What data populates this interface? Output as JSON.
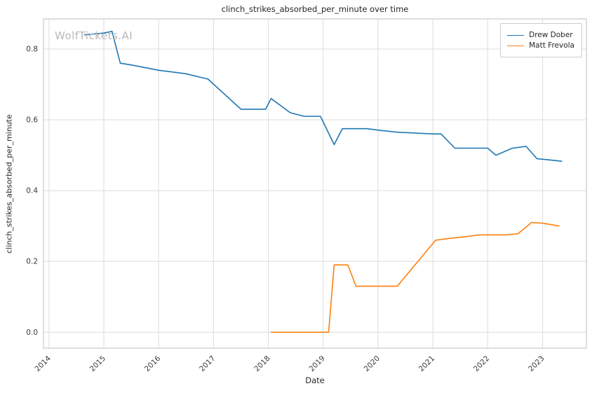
{
  "chart_data": {
    "type": "line",
    "title": "clinch_strikes_absorbed_per_minute over time",
    "xlabel": "Date",
    "ylabel": "clinch_strikes_absorbed_per_minute",
    "watermark": "WolfTickets.AI",
    "grid": true,
    "legend_position": "upper right",
    "xlim": [
      2013.9,
      2023.8
    ],
    "ylim": [
      -0.045,
      0.885
    ],
    "x_ticks": [
      2014,
      2015,
      2016,
      2017,
      2018,
      2019,
      2020,
      2021,
      2022,
      2023
    ],
    "y_ticks": [
      0.0,
      0.2,
      0.4,
      0.6,
      0.8
    ],
    "colors": {
      "grid": "#dcdcdc",
      "frame": "#c8c8c8",
      "tick_text": "#3a3a3a"
    },
    "series": [
      {
        "name": "Drew Dober",
        "color": "#1f77b4",
        "x": [
          2014.65,
          2015.0,
          2015.15,
          2015.3,
          2015.5,
          2016.0,
          2016.5,
          2016.9,
          2017.5,
          2017.95,
          2018.05,
          2018.4,
          2018.65,
          2018.95,
          2019.2,
          2019.35,
          2019.8,
          2020.05,
          2020.35,
          2021.0,
          2021.15,
          2021.4,
          2021.7,
          2022.0,
          2022.15,
          2022.45,
          2022.7,
          2022.9,
          2023.1,
          2023.35
        ],
        "y": [
          0.84,
          0.845,
          0.85,
          0.76,
          0.755,
          0.74,
          0.73,
          0.715,
          0.63,
          0.63,
          0.66,
          0.62,
          0.61,
          0.61,
          0.53,
          0.575,
          0.575,
          0.57,
          0.565,
          0.56,
          0.56,
          0.52,
          0.52,
          0.52,
          0.5,
          0.52,
          0.525,
          0.49,
          0.487,
          0.483
        ]
      },
      {
        "name": "Matt Frevola",
        "color": "#ff7f0e",
        "x": [
          2018.05,
          2019.1,
          2019.2,
          2019.45,
          2019.6,
          2020.35,
          2021.05,
          2021.3,
          2021.6,
          2021.85,
          2022.3,
          2022.55,
          2022.8,
          2023.0,
          2023.3
        ],
        "y": [
          0.0,
          0.0,
          0.19,
          0.19,
          0.13,
          0.13,
          0.26,
          0.265,
          0.27,
          0.275,
          0.275,
          0.278,
          0.31,
          0.308,
          0.3
        ]
      }
    ]
  }
}
